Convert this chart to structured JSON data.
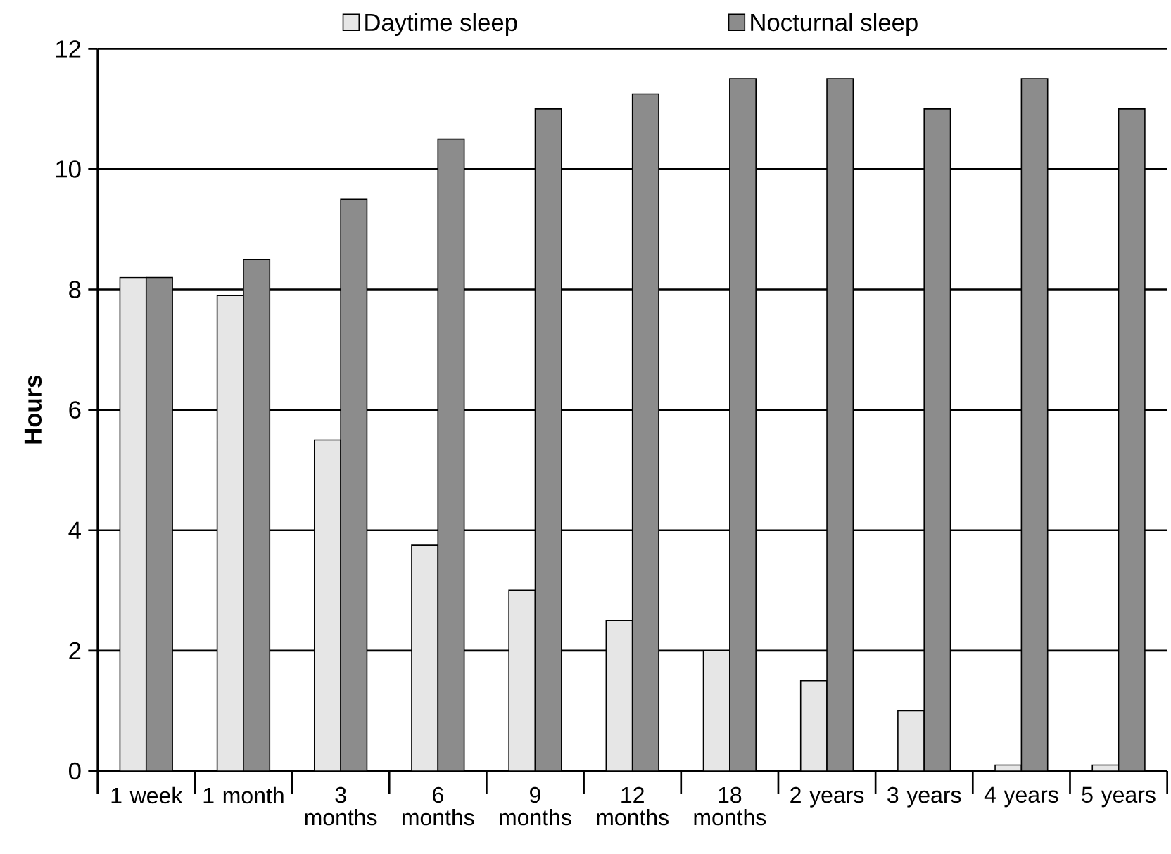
{
  "chart_data": {
    "type": "bar",
    "ylabel": "Hours",
    "categories": [
      "1 week",
      "1 month",
      "3 months",
      "6 months",
      "9 months",
      "12 months",
      "18 months",
      "2 years",
      "3 years",
      "4 years",
      "5 years"
    ],
    "series": [
      {
        "name": "Daytime sleep",
        "color": "#e6e6e6",
        "values": [
          8.2,
          7.9,
          5.5,
          3.75,
          3,
          2.5,
          2,
          1.5,
          1,
          0.1,
          0.1
        ]
      },
      {
        "name": "Nocturnal sleep",
        "color": "#8c8c8c",
        "values": [
          8.2,
          8.5,
          9.5,
          10.5,
          11,
          11.25,
          11.5,
          11.5,
          11,
          11.5,
          11
        ]
      }
    ],
    "ylim": [
      0,
      12
    ],
    "yticks": [
      0,
      2,
      4,
      6,
      8,
      10,
      12
    ],
    "grid": "y",
    "legend": "top"
  }
}
